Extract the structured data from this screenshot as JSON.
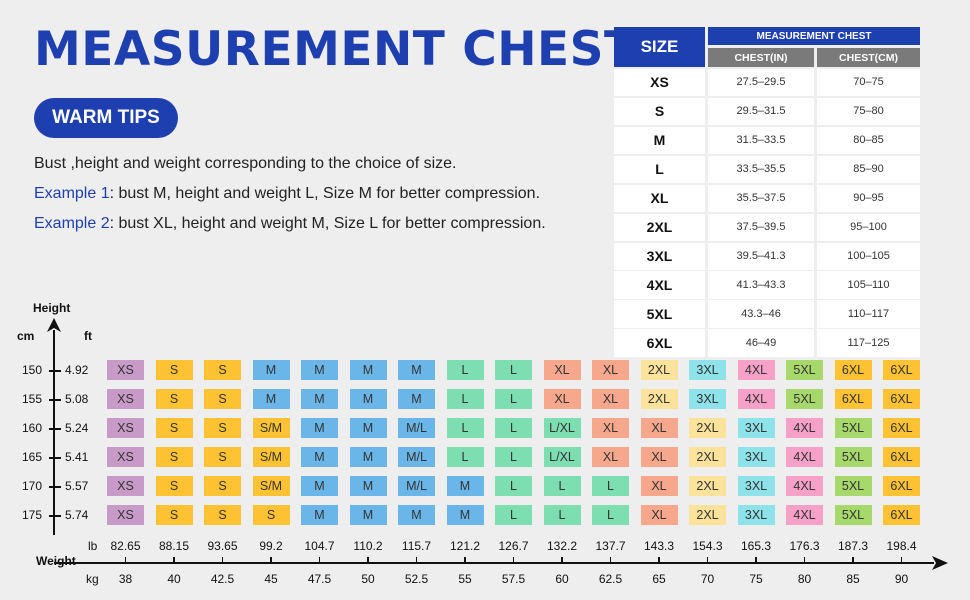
{
  "title": "MEASUREMENT CHEST",
  "tips_button": "WARM TIPS",
  "description": {
    "line1": "Bust ,height and weight corresponding to the choice of size.",
    "example1_label": "Example 1",
    "example1_text": ": bust M, height and weight L, Size M for better compression.",
    "example2_label": "Example 2",
    "example2_text": ": bust XL, height and weight M, Size L for better compression."
  },
  "size_table": {
    "size_header": "SIZE",
    "main_header": "MEASUREMENT CHEST",
    "col_in": "CHEST(IN)",
    "col_cm": "CHEST(CM)",
    "rows": [
      {
        "size": "XS",
        "in": "27.5–29.5",
        "cm": "70–75"
      },
      {
        "size": "S",
        "in": "29.5–31.5",
        "cm": "75–80"
      },
      {
        "size": "M",
        "in": "31.5–33.5",
        "cm": "80–85"
      },
      {
        "size": "L",
        "in": "33.5–35.5",
        "cm": "85–90"
      },
      {
        "size": "XL",
        "in": "35.5–37.5",
        "cm": "90–95"
      },
      {
        "size": "2XL",
        "in": "37.5–39.5",
        "cm": "95–100"
      },
      {
        "size": "3XL",
        "in": "39.5–41.3",
        "cm": "100–105"
      },
      {
        "size": "4XL",
        "in": "41.3–43.3",
        "cm": "105–110"
      },
      {
        "size": "5XL",
        "in": "43.3–46",
        "cm": "110–117"
      },
      {
        "size": "6XL",
        "in": "46–49",
        "cm": "117–125"
      }
    ]
  },
  "chart": {
    "height_label": "Height",
    "cm_label": "cm",
    "ft_label": "ft",
    "weight_label": "Weight",
    "lb_label": "lb",
    "kg_label": "kg",
    "heights": [
      {
        "cm": "150",
        "ft": "4.92"
      },
      {
        "cm": "155",
        "ft": "5.08"
      },
      {
        "cm": "160",
        "ft": "5.24"
      },
      {
        "cm": "165",
        "ft": "5.41"
      },
      {
        "cm": "170",
        "ft": "5.57"
      },
      {
        "cm": "175",
        "ft": "5.74"
      }
    ],
    "lb": [
      "82.65",
      "88.15",
      "93.65",
      "99.2",
      "104.7",
      "110.2",
      "115.7",
      "121.2",
      "126.7",
      "132.2",
      "137.7",
      "143.3",
      "154.3",
      "165.3",
      "176.3",
      "187.3",
      "198.4"
    ],
    "kg": [
      "38",
      "40",
      "42.5",
      "45",
      "47.5",
      "50",
      "52.5",
      "55",
      "57.5",
      "60",
      "62.5",
      "65",
      "70",
      "75",
      "80",
      "85",
      "90"
    ],
    "grid": [
      [
        "XS",
        "S",
        "S",
        "M",
        "M",
        "M",
        "M",
        "L",
        "L",
        "XL",
        "XL",
        "2XL",
        "3XL",
        "4XL",
        "5XL",
        "6XL",
        "6XL"
      ],
      [
        "XS",
        "S",
        "S",
        "M",
        "M",
        "M",
        "M",
        "L",
        "L",
        "XL",
        "XL",
        "2XL",
        "3XL",
        "4XL",
        "5XL",
        "6XL",
        "6XL"
      ],
      [
        "XS",
        "S",
        "S",
        "S/M",
        "M",
        "M",
        "M/L",
        "L",
        "L",
        "L/XL",
        "XL",
        "XL",
        "2XL",
        "3XL",
        "4XL",
        "5XL",
        "6XL"
      ],
      [
        "XS",
        "S",
        "S",
        "S/M",
        "M",
        "M",
        "M/L",
        "L",
        "L",
        "L/XL",
        "XL",
        "XL",
        "2XL",
        "3XL",
        "4XL",
        "5XL",
        "6XL"
      ],
      [
        "XS",
        "S",
        "S",
        "S/M",
        "M",
        "M",
        "M/L",
        "M",
        "L",
        "L",
        "L",
        "XL",
        "2XL",
        "3XL",
        "4XL",
        "5XL",
        "6XL"
      ],
      [
        "XS",
        "S",
        "S",
        "S",
        "M",
        "M",
        "M",
        "M",
        "L",
        "L",
        "L",
        "XL",
        "2XL",
        "3XL",
        "4XL",
        "5XL",
        "6XL"
      ]
    ],
    "colors": {
      "XS": "#c89ac8",
      "S": "#ffc233",
      "S/M": "#ffc233",
      "M": "#6bb6e8",
      "M/L": "#6bb6e8",
      "L": "#7ddfb1",
      "L/XL": "#7ddfb1",
      "XL": "#f7a88c",
      "2XL": "#fbe39c",
      "3XL": "#8ee2ea",
      "4XL": "#f7a1c8",
      "5XL": "#a6d86b",
      "6XL": "#ffc233"
    }
  }
}
